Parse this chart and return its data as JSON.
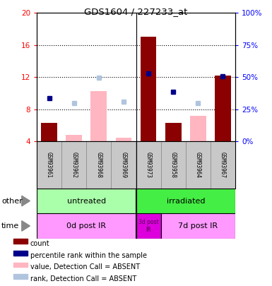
{
  "title": "GDS1604 / 227233_at",
  "samples": [
    "GSM93961",
    "GSM93962",
    "GSM93968",
    "GSM93969",
    "GSM93973",
    "GSM93958",
    "GSM93964",
    "GSM93967"
  ],
  "ylim_left": [
    4,
    20
  ],
  "ylim_right": [
    0,
    100
  ],
  "yticks_left": [
    4,
    8,
    12,
    16,
    20
  ],
  "yticks_right": [
    0,
    25,
    50,
    75,
    100
  ],
  "red_bars": [
    6.3,
    null,
    null,
    null,
    17.0,
    6.3,
    null,
    12.2
  ],
  "pink_bars": [
    null,
    4.8,
    10.3,
    4.5,
    null,
    null,
    7.2,
    null
  ],
  "blue_squares": [
    9.4,
    null,
    null,
    null,
    12.5,
    10.2,
    null,
    12.1
  ],
  "lightblue_squares": [
    null,
    8.8,
    11.9,
    9.0,
    null,
    null,
    8.8,
    null
  ],
  "bar_color": "#8b0000",
  "pink_color": "#ffb6c1",
  "blue_color": "#00008b",
  "lightblue_color": "#b0c4de",
  "untreated_color": "#aaffaa",
  "irradiated_color": "#44ee44",
  "time_light_color": "#ff99ff",
  "time_dark_color": "#dd00dd",
  "gray_color": "#c8c8c8",
  "legend_items": [
    {
      "color": "#8b0000",
      "label": "count"
    },
    {
      "color": "#00008b",
      "label": "percentile rank within the sample"
    },
    {
      "color": "#ffb6c1",
      "label": "value, Detection Call = ABSENT"
    },
    {
      "color": "#b0c4de",
      "label": "rank, Detection Call = ABSENT"
    }
  ]
}
